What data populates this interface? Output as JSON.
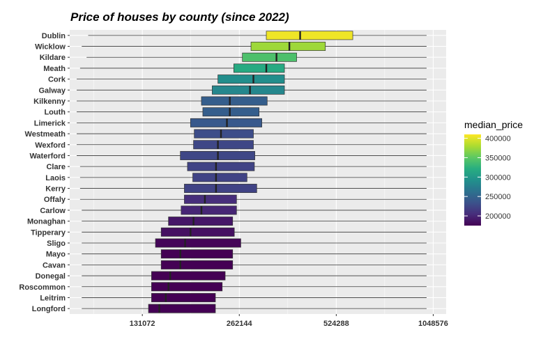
{
  "chart_data": {
    "type": "boxplot",
    "title": "Price of houses by county (since 2022)",
    "xlabel": "",
    "ylabel": "",
    "x_scale": "log2",
    "xlim": [
      78000,
      1150000
    ],
    "x_ticks": [
      131072,
      262144,
      524288,
      1048576
    ],
    "x_tick_labels": [
      "131072",
      "262144",
      "524288",
      "1048576"
    ],
    "grid": true,
    "legend": {
      "title": "median_price",
      "position": "right",
      "range": [
        175000,
        410000
      ],
      "ticks": [
        200000,
        250000,
        300000,
        350000,
        400000
      ],
      "tick_labels": [
        "200000",
        "250000",
        "300000",
        "350000",
        "400000"
      ],
      "palette": "viridis"
    },
    "series": [
      {
        "county": "Dublin",
        "median": 405000,
        "q1": 318000,
        "q3": 590000,
        "wmin": 89000,
        "wmax": 1000000
      },
      {
        "county": "Wicklow",
        "median": 375000,
        "q1": 285000,
        "q3": 485000,
        "wmin": 85000,
        "wmax": 1000000
      },
      {
        "county": "Kildare",
        "median": 342000,
        "q1": 268000,
        "q3": 395000,
        "wmin": 88000,
        "wmax": 1000000
      },
      {
        "county": "Meath",
        "median": 318000,
        "q1": 252000,
        "q3": 362000,
        "wmin": 84000,
        "wmax": 1000000
      },
      {
        "county": "Cork",
        "median": 290000,
        "q1": 225000,
        "q3": 362000,
        "wmin": 82000,
        "wmax": 1000000
      },
      {
        "county": "Galway",
        "median": 283000,
        "q1": 216000,
        "q3": 362000,
        "wmin": 82000,
        "wmax": 1000000
      },
      {
        "county": "Kilkenny",
        "median": 245000,
        "q1": 200000,
        "q3": 320000,
        "wmin": 82000,
        "wmax": 1000000
      },
      {
        "county": "Louth",
        "median": 245000,
        "q1": 202000,
        "q3": 302000,
        "wmin": 82000,
        "wmax": 1000000
      },
      {
        "county": "Limerick",
        "median": 240000,
        "q1": 185000,
        "q3": 308000,
        "wmin": 82000,
        "wmax": 1000000
      },
      {
        "county": "Westmeath",
        "median": 230000,
        "q1": 190000,
        "q3": 290000,
        "wmin": 82000,
        "wmax": 1000000
      },
      {
        "county": "Wexford",
        "median": 225000,
        "q1": 189000,
        "q3": 290000,
        "wmin": 82000,
        "wmax": 1000000
      },
      {
        "county": "Waterford",
        "median": 225000,
        "q1": 172000,
        "q3": 293000,
        "wmin": 82000,
        "wmax": 1000000
      },
      {
        "county": "Clare",
        "median": 222000,
        "q1": 181000,
        "q3": 292000,
        "wmin": 84000,
        "wmax": 1000000
      },
      {
        "county": "Laois",
        "median": 222000,
        "q1": 188000,
        "q3": 277000,
        "wmin": 84000,
        "wmax": 1000000
      },
      {
        "county": "Kerry",
        "median": 222000,
        "q1": 177000,
        "q3": 297000,
        "wmin": 84000,
        "wmax": 1000000
      },
      {
        "county": "Offaly",
        "median": 205000,
        "q1": 177000,
        "q3": 257000,
        "wmin": 84000,
        "wmax": 1000000
      },
      {
        "county": "Carlow",
        "median": 200000,
        "q1": 173000,
        "q3": 257000,
        "wmin": 85000,
        "wmax": 1000000
      },
      {
        "county": "Monaghan",
        "median": 189000,
        "q1": 158000,
        "q3": 250000,
        "wmin": 85000,
        "wmax": 1000000
      },
      {
        "county": "Tipperary",
        "median": 185000,
        "q1": 150000,
        "q3": 253000,
        "wmin": 85000,
        "wmax": 1000000
      },
      {
        "county": "Sligo",
        "median": 178000,
        "q1": 144000,
        "q3": 265000,
        "wmin": 85000,
        "wmax": 1000000
      },
      {
        "county": "Mayo",
        "median": 172000,
        "q1": 150000,
        "q3": 250000,
        "wmin": 85000,
        "wmax": 1000000
      },
      {
        "county": "Cavan",
        "median": 172000,
        "q1": 150000,
        "q3": 250000,
        "wmin": 85000,
        "wmax": 1000000
      },
      {
        "county": "Donegal",
        "median": 160000,
        "q1": 140000,
        "q3": 237000,
        "wmin": 85000,
        "wmax": 1000000
      },
      {
        "county": "Roscommon",
        "median": 158000,
        "q1": 140000,
        "q3": 232000,
        "wmin": 85000,
        "wmax": 1000000
      },
      {
        "county": "Leitrim",
        "median": 155000,
        "q1": 140000,
        "q3": 221000,
        "wmin": 85000,
        "wmax": 1000000
      },
      {
        "county": "Longford",
        "median": 148000,
        "q1": 137000,
        "q3": 221000,
        "wmin": 85000,
        "wmax": 1000000
      }
    ]
  }
}
